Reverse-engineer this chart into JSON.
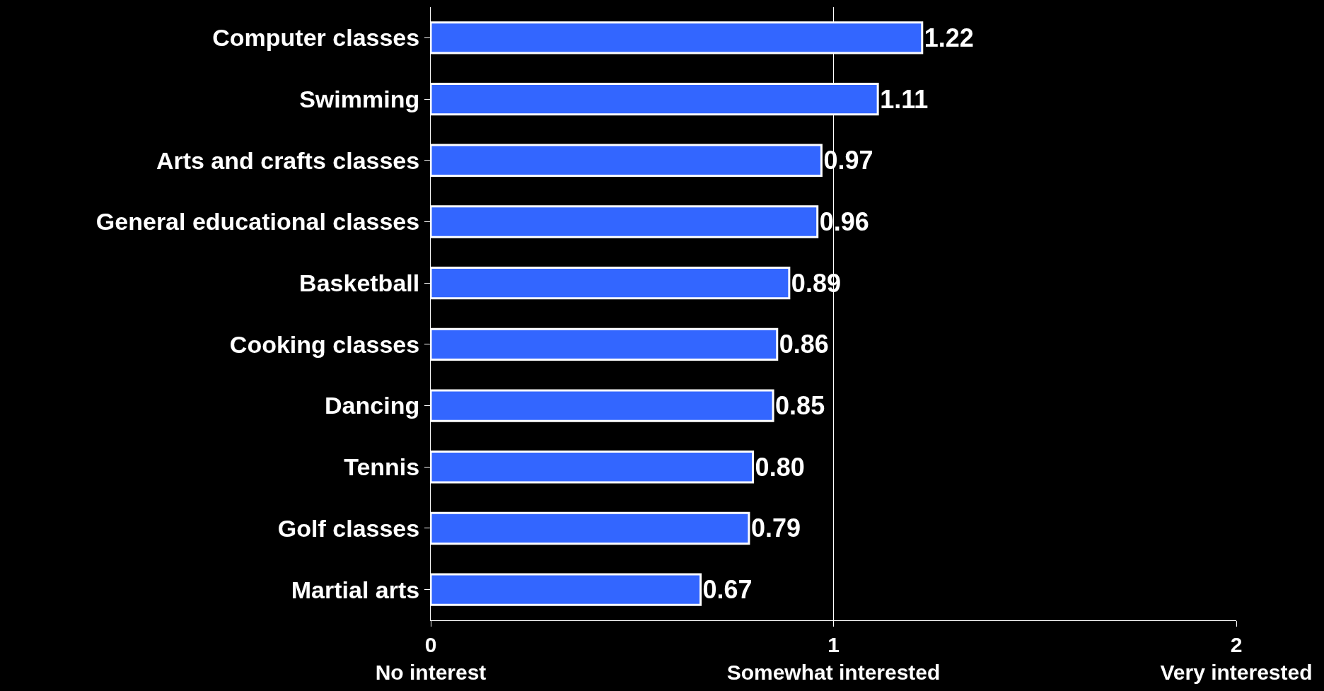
{
  "chart_data": {
    "type": "bar",
    "orientation": "horizontal",
    "categories": [
      "Computer classes",
      "Swimming",
      "Arts and crafts classes",
      "General educational classes",
      "Basketball",
      "Cooking classes",
      "Dancing",
      "Tennis",
      "Golf classes",
      "Martial arts"
    ],
    "values": [
      1.22,
      1.11,
      0.97,
      0.96,
      0.89,
      0.86,
      0.85,
      0.8,
      0.79,
      0.67
    ],
    "value_labels": [
      "1.22",
      "1.11",
      "0.97",
      "0.96",
      "0.89",
      "0.86",
      "0.85",
      "0.80",
      "0.79",
      "0.67"
    ],
    "color": "#3366ff",
    "xlim": [
      0,
      2
    ],
    "xticks": [
      {
        "value": 0,
        "label": "0\nNo interest"
      },
      {
        "value": 1,
        "label": "1\nSomewhat interested"
      },
      {
        "value": 2,
        "label": "2\nVery interested"
      }
    ],
    "grid": "x",
    "legend": false
  }
}
